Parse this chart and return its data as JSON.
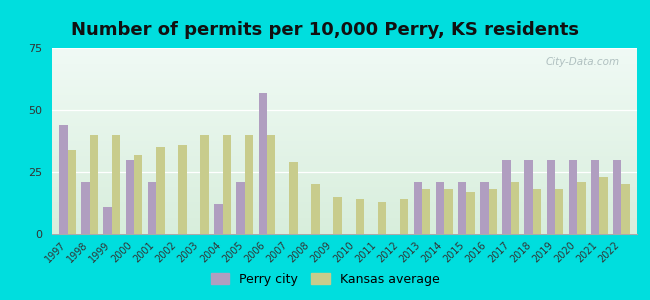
{
  "title": "Number of permits per 10,000 Perry, KS residents",
  "years": [
    1997,
    1998,
    1999,
    2000,
    2001,
    2002,
    2003,
    2004,
    2005,
    2006,
    2007,
    2008,
    2009,
    2010,
    2011,
    2012,
    2013,
    2014,
    2015,
    2016,
    2017,
    2018,
    2019,
    2020,
    2021,
    2022
  ],
  "perry": [
    44,
    21,
    11,
    30,
    21,
    0,
    0,
    12,
    21,
    57,
    0,
    0,
    0,
    0,
    0,
    0,
    21,
    21,
    21,
    21,
    30,
    30,
    30,
    30,
    30,
    30
  ],
  "kansas": [
    34,
    40,
    40,
    32,
    35,
    36,
    40,
    40,
    40,
    40,
    29,
    20,
    15,
    14,
    13,
    14,
    18,
    18,
    17,
    18,
    21,
    18,
    18,
    21,
    23,
    20
  ],
  "perry_color": "#b09ec0",
  "kansas_color": "#c8cc8c",
  "outer_bg": "#00dede",
  "plot_bg_top": "#f0faf5",
  "plot_bg_bottom": "#d8eedc",
  "ylim": [
    0,
    75
  ],
  "yticks": [
    0,
    25,
    50,
    75
  ],
  "legend_perry": "Perry city",
  "legend_kansas": "Kansas average",
  "bar_width": 0.38,
  "title_fontsize": 13,
  "tick_fontsize": 7,
  "legend_fontsize": 9
}
